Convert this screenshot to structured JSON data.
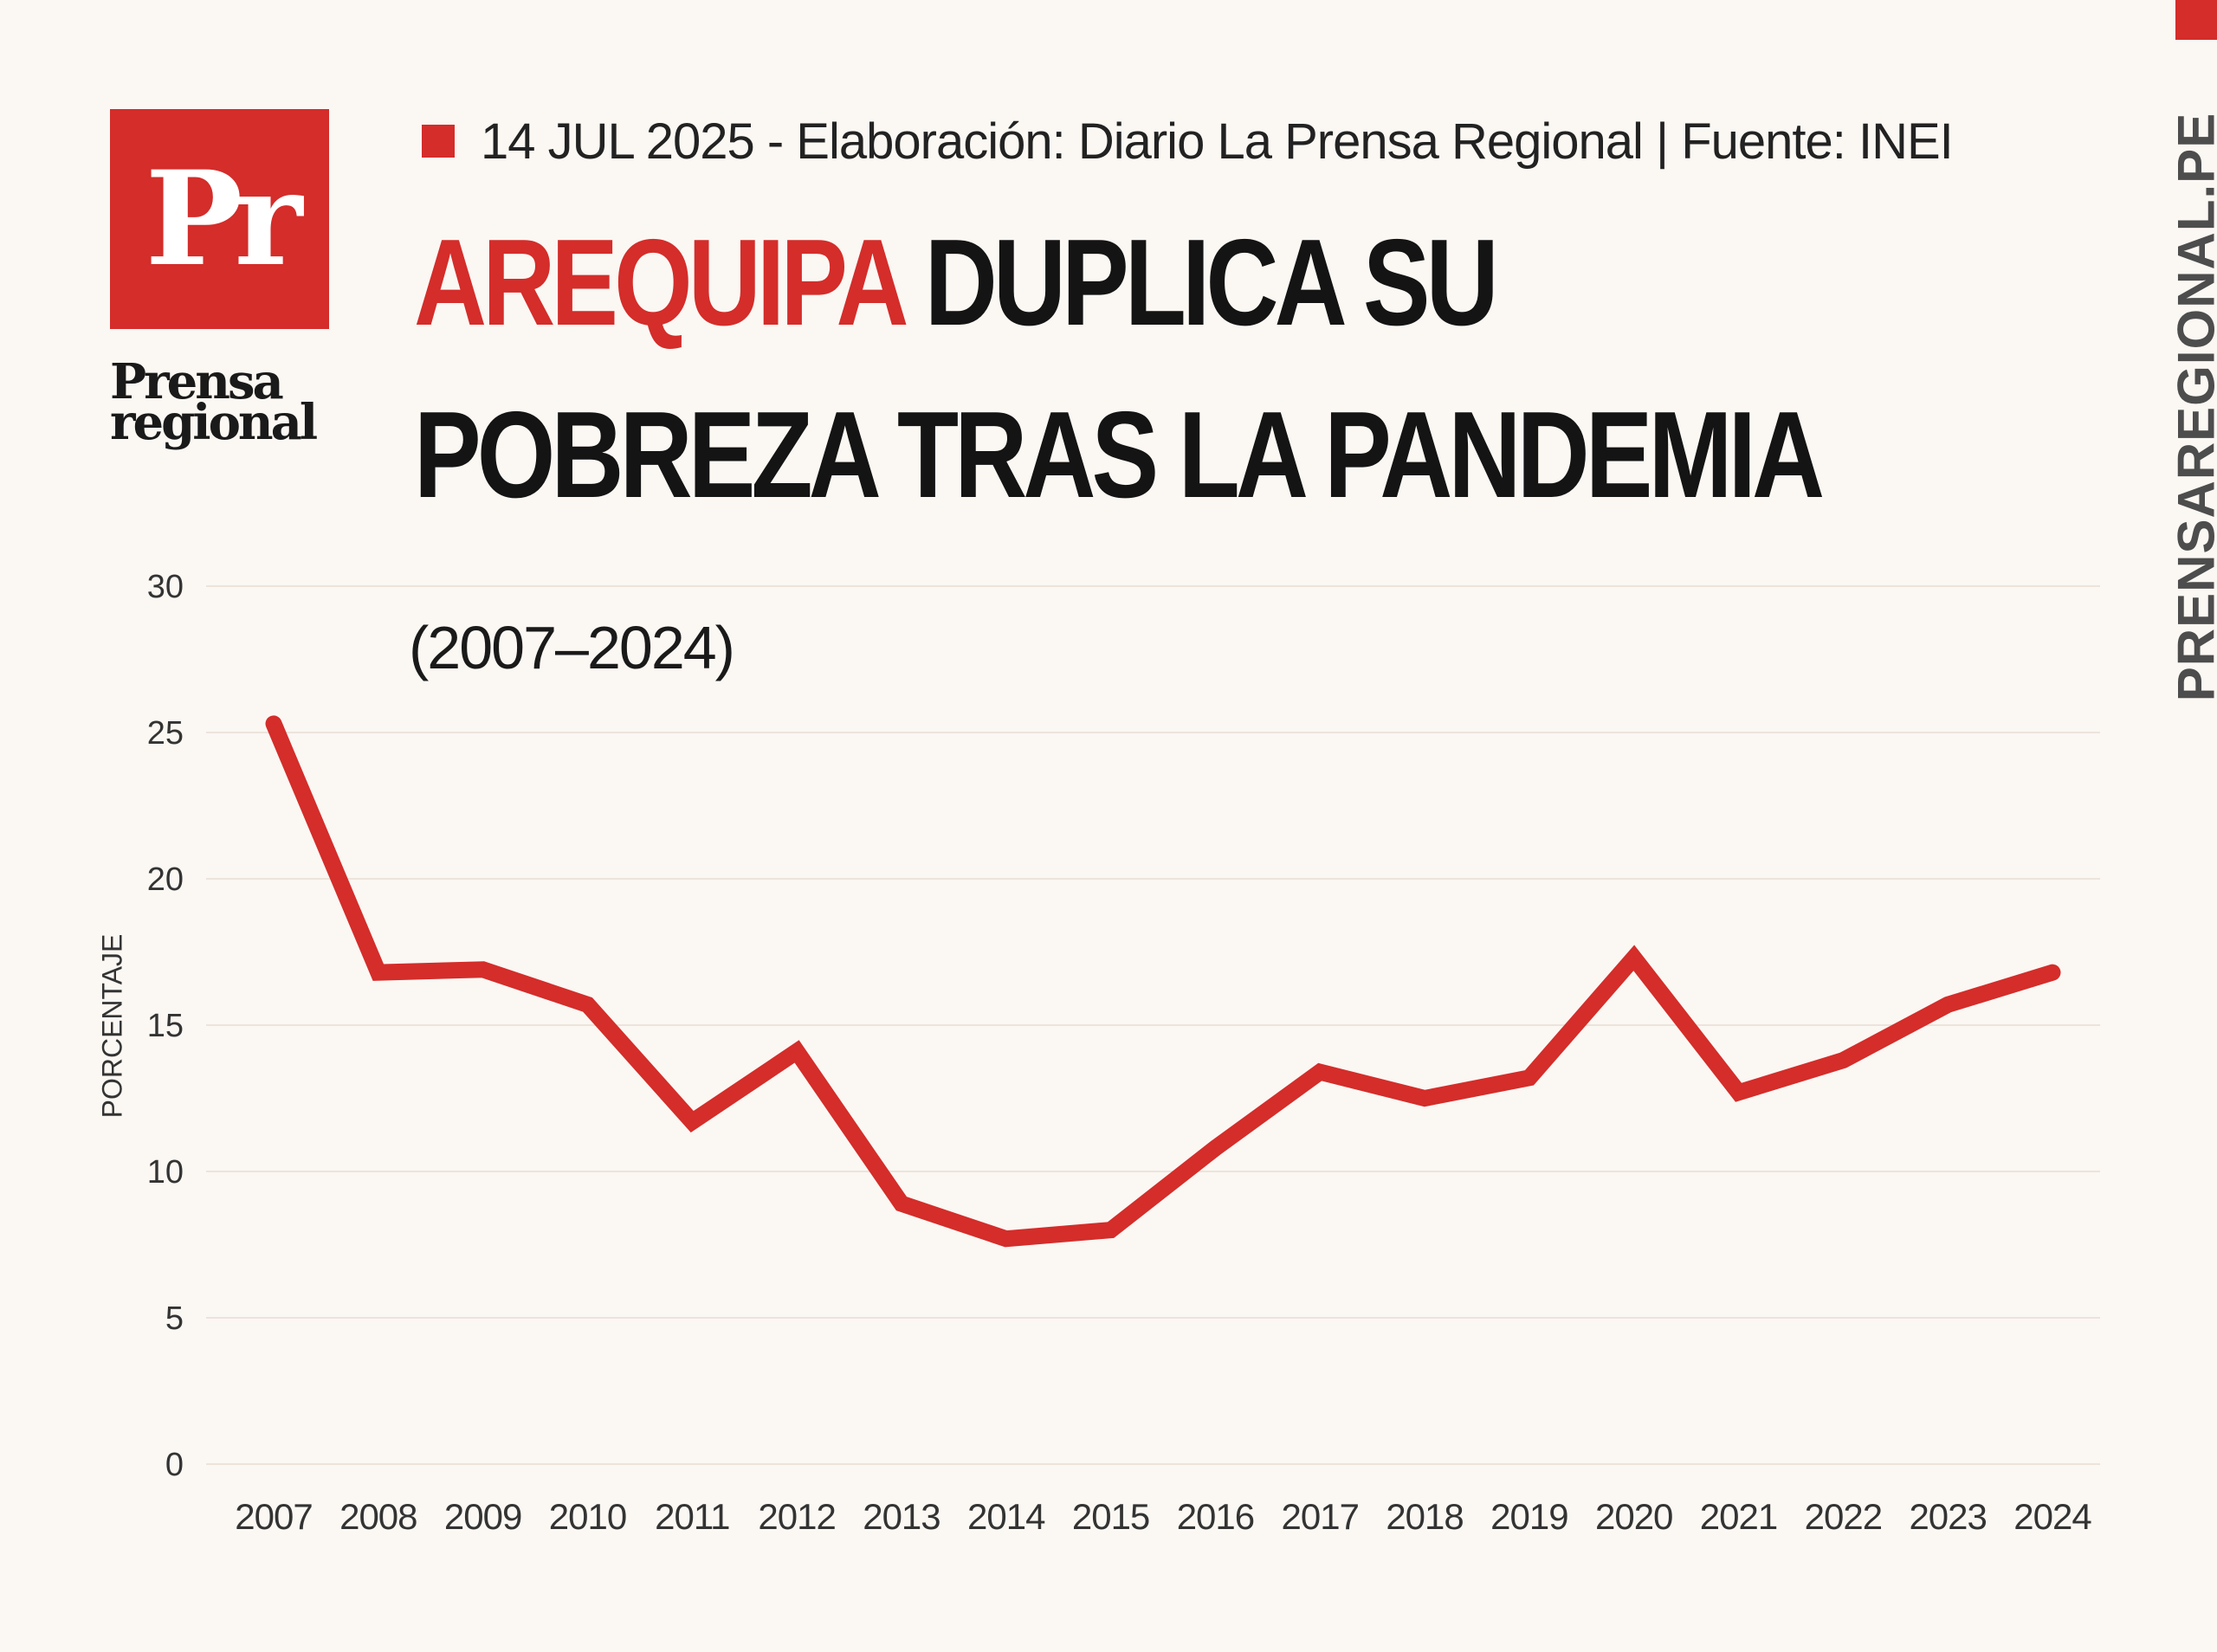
{
  "brand": {
    "logo_mark": "Pr",
    "logo_word_1": "Prensa",
    "logo_word_2": "regional",
    "side_url": "PRENSAREGIONAL.PE",
    "accent_color": "#d42d2a"
  },
  "meta": {
    "text": "14 JUL 2025 -  Elaboración: Diario La Prensa Regional | Fuente: INEI"
  },
  "headline": {
    "accent": "AREQUIPA",
    "rest_line1": " DUPLICA SU",
    "line2": "POBREZA TRAS LA PANDEMIA"
  },
  "chart_data": {
    "type": "line",
    "subtitle": "(2007–2024)",
    "ylabel": "PORCENTAJE",
    "xlabel": "",
    "ylim": [
      0,
      30
    ],
    "yticks": [
      0,
      5,
      10,
      15,
      20,
      25,
      30
    ],
    "grid": true,
    "line_color": "#d42d2a",
    "x": [
      "2007",
      "2008",
      "2009",
      "2010",
      "2011",
      "2012",
      "2013",
      "2014",
      "2015",
      "2016",
      "2017",
      "2018",
      "2019",
      "2020",
      "2021",
      "2022",
      "2023",
      "2024"
    ],
    "values": [
      25.3,
      16.8,
      16.9,
      15.7,
      11.7,
      14.1,
      8.9,
      7.7,
      8.0,
      10.8,
      13.4,
      12.5,
      13.2,
      17.3,
      12.7,
      13.8,
      15.7,
      16.8
    ]
  }
}
